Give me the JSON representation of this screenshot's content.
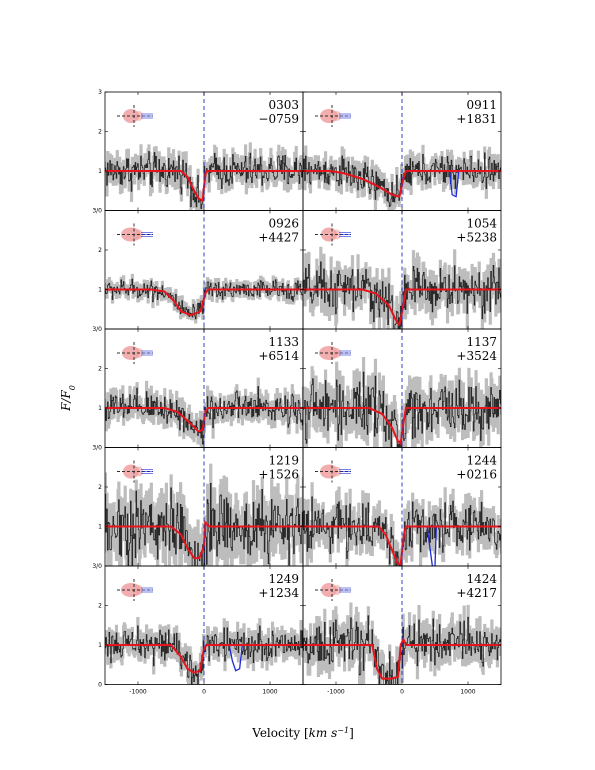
{
  "figure": {
    "ylabel": "F/F",
    "ylabel_sub": "0",
    "xlabel_prefix": "Velocity [",
    "xlabel_unit": "km s",
    "xlabel_exp": "−1",
    "xlabel_suffix": "]"
  },
  "chart_data": {
    "type": "line",
    "xlim": [
      -1500,
      1500
    ],
    "ylim": [
      0,
      3
    ],
    "x_ticks": [
      -1000,
      0,
      1000
    ],
    "x_tick_labels": [
      "-1000",
      "0",
      "1000"
    ],
    "y_ticks": [
      0,
      1,
      2,
      3
    ],
    "y_tick_labels_bottom_panel": [
      "0",
      "1",
      "2",
      "3"
    ],
    "y_tick_labels_stacked_panel": [
      "3/0",
      "1",
      "2",
      "3"
    ],
    "reference_line_x": 0,
    "colors": {
      "data_black": "#1a1a1a",
      "data_gray": "#bdbdbd",
      "fit": "#e8141d",
      "contaminant": "#1c2bd6",
      "ref_line": "#1a2fcc",
      "ellipse": "#f0a0a0",
      "sightline": "#333333"
    },
    "panels": [
      {
        "id": "0303-0759",
        "label_top": "0303",
        "label_bottom": "−0759",
        "row": 0,
        "col": 0,
        "profile": [
          [
            -1500,
            1.0
          ],
          [
            -350,
            1.0
          ],
          [
            -250,
            0.85
          ],
          [
            -150,
            0.5
          ],
          [
            -80,
            0.3
          ],
          [
            -20,
            0.25
          ],
          [
            0,
            0.6
          ],
          [
            30,
            1.0
          ],
          [
            1500,
            1.0
          ]
        ],
        "noise": 0.22,
        "contaminant": []
      },
      {
        "id": "0911+1831",
        "label_top": "0911",
        "label_bottom": "+1831",
        "row": 0,
        "col": 1,
        "profile": [
          [
            -1500,
            1.0
          ],
          [
            -1100,
            1.0
          ],
          [
            -900,
            0.95
          ],
          [
            -600,
            0.8
          ],
          [
            -350,
            0.6
          ],
          [
            -150,
            0.4
          ],
          [
            -40,
            0.35
          ],
          [
            20,
            0.8
          ],
          [
            60,
            1.0
          ],
          [
            1500,
            1.0
          ]
        ],
        "noise": 0.2,
        "contaminant": [
          [
            720,
            1.0
          ],
          [
            760,
            0.4
          ],
          [
            820,
            0.35
          ],
          [
            860,
            1.0
          ]
        ]
      },
      {
        "id": "0926+4427",
        "label_top": "0926",
        "label_bottom": "+4427",
        "row": 1,
        "col": 0,
        "profile": [
          [
            -1500,
            1.0
          ],
          [
            -800,
            1.0
          ],
          [
            -600,
            0.95
          ],
          [
            -450,
            0.7
          ],
          [
            -350,
            0.45
          ],
          [
            -200,
            0.35
          ],
          [
            -50,
            0.45
          ],
          [
            20,
            0.9
          ],
          [
            60,
            1.0
          ],
          [
            1500,
            1.0
          ]
        ],
        "noise": 0.12,
        "contaminant": []
      },
      {
        "id": "1054+5238",
        "label_top": "1054",
        "label_bottom": "+5238",
        "row": 1,
        "col": 1,
        "profile": [
          [
            -1500,
            1.0
          ],
          [
            -600,
            1.0
          ],
          [
            -400,
            0.9
          ],
          [
            -200,
            0.6
          ],
          [
            -100,
            0.25
          ],
          [
            -40,
            0.1
          ],
          [
            10,
            0.5
          ],
          [
            60,
            1.0
          ],
          [
            1500,
            1.0
          ]
        ],
        "noise": 0.3,
        "contaminant": []
      },
      {
        "id": "1133+6514",
        "label_top": "1133",
        "label_bottom": "+6514",
        "row": 2,
        "col": 0,
        "profile": [
          [
            -1500,
            1.0
          ],
          [
            -600,
            1.0
          ],
          [
            -400,
            0.9
          ],
          [
            -200,
            0.6
          ],
          [
            -80,
            0.4
          ],
          [
            -20,
            0.45
          ],
          [
            20,
            0.9
          ],
          [
            60,
            1.0
          ],
          [
            1500,
            1.0
          ]
        ],
        "noise": 0.2,
        "contaminant": []
      },
      {
        "id": "1137+3524",
        "label_top": "1137",
        "label_bottom": "+3524",
        "row": 2,
        "col": 1,
        "profile": [
          [
            -1500,
            1.0
          ],
          [
            -500,
            1.0
          ],
          [
            -300,
            0.85
          ],
          [
            -150,
            0.5
          ],
          [
            -60,
            0.15
          ],
          [
            -20,
            0.1
          ],
          [
            20,
            0.6
          ],
          [
            60,
            1.0
          ],
          [
            1500,
            1.0
          ]
        ],
        "noise": 0.35,
        "contaminant": []
      },
      {
        "id": "1219+1526",
        "label_top": "1219",
        "label_bottom": "+1526",
        "row": 3,
        "col": 0,
        "profile": [
          [
            -1500,
            1.0
          ],
          [
            -500,
            1.0
          ],
          [
            -350,
            0.8
          ],
          [
            -250,
            0.45
          ],
          [
            -150,
            0.2
          ],
          [
            -70,
            0.2
          ],
          [
            0,
            0.5
          ],
          [
            20,
            1.1
          ],
          [
            80,
            1.0
          ],
          [
            1500,
            1.0
          ]
        ],
        "noise": 0.45,
        "contaminant": []
      },
      {
        "id": "1244+0216",
        "label_top": "1244",
        "label_bottom": "+0216",
        "row": 3,
        "col": 1,
        "profile": [
          [
            -1500,
            1.0
          ],
          [
            -350,
            1.0
          ],
          [
            -250,
            0.8
          ],
          [
            -150,
            0.4
          ],
          [
            -60,
            0.05
          ],
          [
            -20,
            0.05
          ],
          [
            30,
            0.8
          ],
          [
            60,
            1.0
          ],
          [
            1500,
            1.0
          ]
        ],
        "noise": 0.3,
        "contaminant": [
          [
            380,
            1.0
          ],
          [
            420,
            0.5
          ],
          [
            460,
            0.0
          ],
          [
            500,
            0.0
          ],
          [
            520,
            1.0
          ]
        ]
      },
      {
        "id": "1249+1234",
        "label_top": "1249",
        "label_bottom": "+1234",
        "row": 4,
        "col": 0,
        "profile": [
          [
            -1500,
            1.0
          ],
          [
            -500,
            1.0
          ],
          [
            -350,
            0.7
          ],
          [
            -250,
            0.4
          ],
          [
            -150,
            0.3
          ],
          [
            -60,
            0.35
          ],
          [
            0,
            0.9
          ],
          [
            40,
            1.0
          ],
          [
            1500,
            1.0
          ]
        ],
        "noise": 0.2,
        "contaminant": [
          [
            380,
            1.0
          ],
          [
            430,
            0.6
          ],
          [
            480,
            0.35
          ],
          [
            540,
            0.4
          ],
          [
            580,
            1.0
          ]
        ]
      },
      {
        "id": "1424+4217",
        "label_top": "1424",
        "label_bottom": "+4217",
        "row": 4,
        "col": 1,
        "profile": [
          [
            -1500,
            1.0
          ],
          [
            -450,
            1.0
          ],
          [
            -380,
            0.4
          ],
          [
            -300,
            0.15
          ],
          [
            -150,
            0.15
          ],
          [
            -60,
            0.2
          ],
          [
            -20,
            1.0
          ],
          [
            20,
            1.15
          ],
          [
            60,
            1.0
          ],
          [
            1500,
            1.0
          ]
        ],
        "noise": 0.3,
        "contaminant": []
      }
    ]
  }
}
